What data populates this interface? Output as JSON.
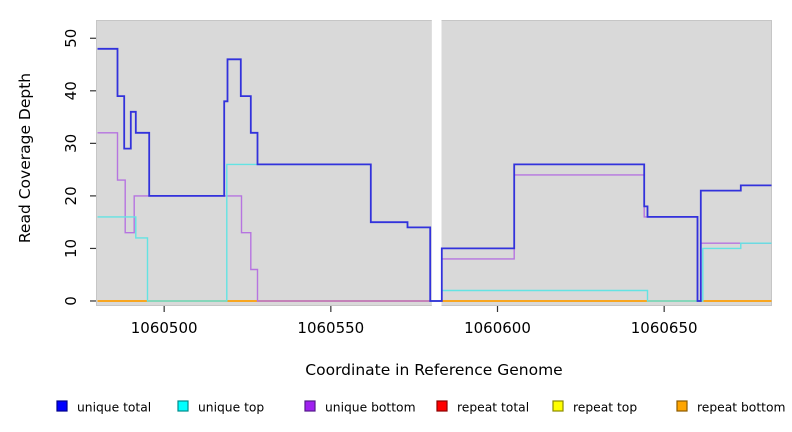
{
  "figure": {
    "background": "#ffffff",
    "text_color": "#000000",
    "tick_color": "#333333"
  },
  "chart_data": {
    "type": "line",
    "subtype": "step",
    "title": "",
    "xlabel": "Coordinate in Reference Genome",
    "ylabel": "Read Coverage Depth",
    "xlim": [
      1060479.7,
      1060682.2
    ],
    "ylim": [
      -0.86,
      53.38
    ],
    "x_ticks": [
      1060500,
      1060550,
      1060600,
      1060650
    ],
    "y_ticks": [
      0,
      10,
      20,
      30,
      40,
      50
    ],
    "grid": false,
    "panel_background": "#d9d9d9",
    "panel_border": "#c6c6c6",
    "legend_position": "bottom",
    "mask_regions": [
      {
        "x0": 1060580.3,
        "x1": 1060583.2,
        "color": "#ffffff"
      }
    ],
    "series": [
      {
        "name": "repeat total",
        "line_color": "#e63030",
        "width": 1.2,
        "steps": [
          [
            1060480,
            0
          ],
          [
            1060682.2,
            0
          ]
        ]
      },
      {
        "name": "repeat top",
        "line_color": "#f2f200",
        "width": 1.2,
        "steps": [
          [
            1060480,
            0
          ],
          [
            1060682.2,
            0
          ]
        ]
      },
      {
        "name": "repeat bottom",
        "line_color": "#ff9e00",
        "width": 1.6,
        "steps": [
          [
            1060480,
            0
          ],
          [
            1060682.2,
            0
          ]
        ]
      },
      {
        "name": "unique bottom",
        "line_color": "#b674e0",
        "width": 1.4,
        "steps": [
          [
            1060480,
            32
          ],
          [
            1060486,
            23
          ],
          [
            1060488.3,
            13
          ],
          [
            1060491,
            20
          ],
          [
            1060523.2,
            13
          ],
          [
            1060526,
            6
          ],
          [
            1060528,
            0
          ],
          [
            1060583.3,
            8
          ],
          [
            1060605,
            24
          ],
          [
            1060644,
            16
          ],
          [
            1060660,
            0
          ],
          [
            1060661,
            11
          ],
          [
            1060682.2,
            11
          ]
        ]
      },
      {
        "name": "unique top",
        "line_color": "#63e3e3",
        "width": 1.4,
        "steps": [
          [
            1060480,
            16
          ],
          [
            1060491.5,
            12
          ],
          [
            1060495,
            0
          ],
          [
            1060518.8,
            26
          ],
          [
            1060562,
            15
          ],
          [
            1060573,
            14
          ],
          [
            1060579.8,
            0
          ],
          [
            1060583.3,
            2
          ],
          [
            1060645,
            0
          ],
          [
            1060661.6,
            10
          ],
          [
            1060673,
            11
          ],
          [
            1060682.2,
            11
          ]
        ]
      },
      {
        "name": "unique total",
        "line_color": "#3232dc",
        "width": 1.8,
        "steps": [
          [
            1060480,
            48
          ],
          [
            1060486,
            39
          ],
          [
            1060488,
            29
          ],
          [
            1060490,
            36
          ],
          [
            1060491.5,
            32
          ],
          [
            1060495.5,
            20
          ],
          [
            1060518,
            38
          ],
          [
            1060519,
            46
          ],
          [
            1060523,
            39
          ],
          [
            1060526,
            32
          ],
          [
            1060528,
            26
          ],
          [
            1060562,
            15
          ],
          [
            1060573,
            14
          ],
          [
            1060579.8,
            0
          ],
          [
            1060583.3,
            10
          ],
          [
            1060605,
            26
          ],
          [
            1060644,
            18
          ],
          [
            1060645,
            16
          ],
          [
            1060660,
            0
          ],
          [
            1060661,
            21
          ],
          [
            1060673,
            22
          ],
          [
            1060682.2,
            22
          ]
        ]
      }
    ],
    "legend": [
      {
        "label": "unique total",
        "fill": "#0000ff",
        "border": "#00008b"
      },
      {
        "label": "unique top",
        "fill": "#00ffff",
        "border": "#008b8b"
      },
      {
        "label": "unique bottom",
        "fill": "#a020f0",
        "border": "#551a8b"
      },
      {
        "label": "repeat total",
        "fill": "#ff0000",
        "border": "#8b0000"
      },
      {
        "label": "repeat top",
        "fill": "#ffff00",
        "border": "#8b8b00"
      },
      {
        "label": "repeat bottom",
        "fill": "#ffa500",
        "border": "#8b5a00"
      }
    ]
  }
}
